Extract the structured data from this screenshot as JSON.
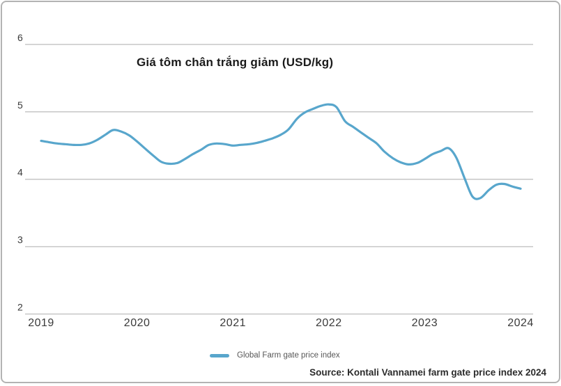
{
  "chart_data": {
    "type": "line",
    "title": "Giá tôm chân trắng giảm (USD/kg)",
    "source": "Source: Kontali Vannamei farm gate price index 2024",
    "xlabel": "",
    "ylabel": "",
    "xlim": [
      2019,
      2024
    ],
    "ylim": [
      2,
      6
    ],
    "xticks": [
      "2019",
      "2020",
      "2021",
      "2022",
      "2023",
      "2024"
    ],
    "yticks": [
      "2",
      "3",
      "4",
      "5",
      "6"
    ],
    "grid": "horizontal",
    "legend_position": "bottom-center",
    "colors": {
      "line": "#58a6cc",
      "gridline": "#c6c6c6",
      "tick_text": "#3a3a3a"
    },
    "series": [
      {
        "name": "Global Farm gate price index",
        "color": "#58a6cc",
        "points": [
          [
            2019.0,
            4.57
          ],
          [
            2019.08,
            4.55
          ],
          [
            2019.17,
            4.53
          ],
          [
            2019.25,
            4.52
          ],
          [
            2019.33,
            4.51
          ],
          [
            2019.42,
            4.51
          ],
          [
            2019.5,
            4.53
          ],
          [
            2019.58,
            4.58
          ],
          [
            2019.67,
            4.66
          ],
          [
            2019.75,
            4.73
          ],
          [
            2019.83,
            4.71
          ],
          [
            2019.92,
            4.65
          ],
          [
            2020.0,
            4.56
          ],
          [
            2020.08,
            4.46
          ],
          [
            2020.17,
            4.35
          ],
          [
            2020.25,
            4.26
          ],
          [
            2020.33,
            4.23
          ],
          [
            2020.42,
            4.24
          ],
          [
            2020.5,
            4.3
          ],
          [
            2020.58,
            4.37
          ],
          [
            2020.67,
            4.44
          ],
          [
            2020.75,
            4.51
          ],
          [
            2020.83,
            4.53
          ],
          [
            2020.92,
            4.52
          ],
          [
            2021.0,
            4.5
          ],
          [
            2021.08,
            4.51
          ],
          [
            2021.17,
            4.52
          ],
          [
            2021.25,
            4.54
          ],
          [
            2021.33,
            4.57
          ],
          [
            2021.42,
            4.61
          ],
          [
            2021.5,
            4.66
          ],
          [
            2021.58,
            4.74
          ],
          [
            2021.67,
            4.9
          ],
          [
            2021.75,
            4.99
          ],
          [
            2021.83,
            5.04
          ],
          [
            2021.92,
            5.09
          ],
          [
            2022.0,
            5.11
          ],
          [
            2022.08,
            5.07
          ],
          [
            2022.17,
            4.86
          ],
          [
            2022.25,
            4.78
          ],
          [
            2022.33,
            4.7
          ],
          [
            2022.42,
            4.61
          ],
          [
            2022.5,
            4.53
          ],
          [
            2022.58,
            4.41
          ],
          [
            2022.67,
            4.31
          ],
          [
            2022.75,
            4.25
          ],
          [
            2022.83,
            4.22
          ],
          [
            2022.92,
            4.24
          ],
          [
            2023.0,
            4.3
          ],
          [
            2023.08,
            4.37
          ],
          [
            2023.17,
            4.42
          ],
          [
            2023.25,
            4.46
          ],
          [
            2023.33,
            4.32
          ],
          [
            2023.42,
            4.0
          ],
          [
            2023.5,
            3.74
          ],
          [
            2023.58,
            3.72
          ],
          [
            2023.67,
            3.84
          ],
          [
            2023.75,
            3.92
          ],
          [
            2023.83,
            3.93
          ],
          [
            2023.92,
            3.89
          ],
          [
            2024.0,
            3.86
          ]
        ]
      }
    ]
  }
}
